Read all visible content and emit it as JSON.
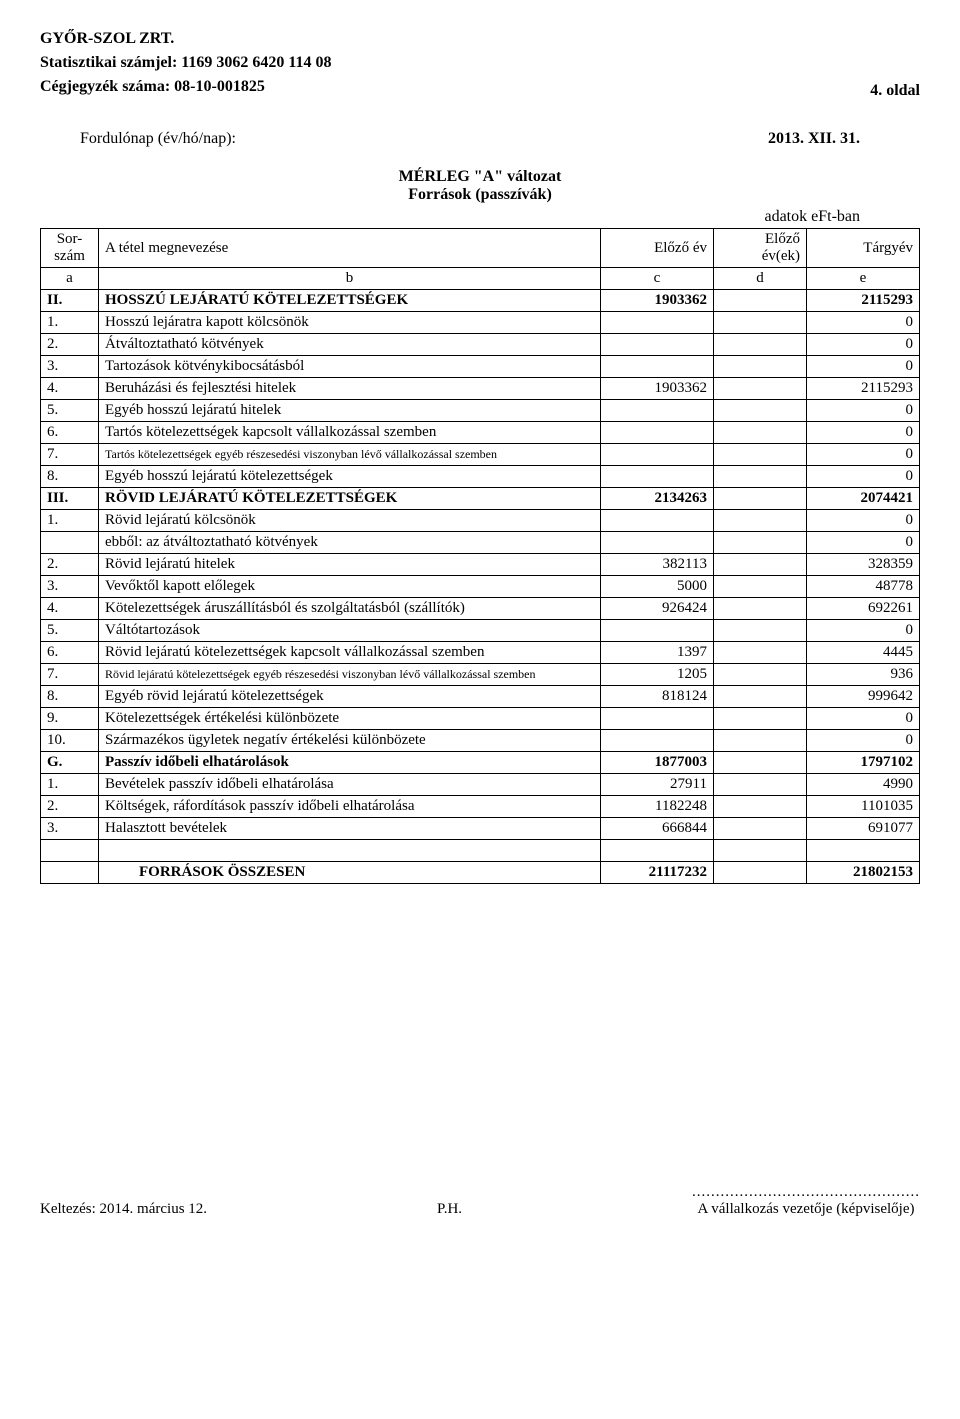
{
  "header": {
    "company": "GYŐR-SZOL ZRT.",
    "stat_label": "Statisztikai számjel: 1169 3062 6420 114 08",
    "reg_label": "Cégjegyzék száma: 08-10-001825",
    "page_no": "4. oldal",
    "date_label": "Fordulónap (év/hó/nap):",
    "date_value": "2013. XII. 31.",
    "title1": "MÉRLEG \"A\" változat",
    "title2": "Források (passzívák)",
    "unit": "adatok eFt-ban"
  },
  "columns": {
    "sor": "Sor-\nszám",
    "sor1": "Sor-",
    "sor2": "szám",
    "megnev": "A tétel megnevezése",
    "elozo_ev": "Előző év",
    "elozo_evek1": "Előző",
    "elozo_evek2": "év(ek)",
    "targyev": "Tárgyév",
    "a": "a",
    "b": "b",
    "c": "c",
    "d": "d",
    "e": "e"
  },
  "rows": [
    {
      "a": "II.",
      "b": "HOSSZÚ LEJÁRATÚ KÖTELEZETTSÉGEK",
      "c": "1903362",
      "d": "",
      "e": "2115293",
      "bold": true
    },
    {
      "a": "1.",
      "b": "Hosszú lejáratra kapott kölcsönök",
      "c": "",
      "d": "",
      "e": "0"
    },
    {
      "a": "2.",
      "b": "Átváltoztatható kötvények",
      "c": "",
      "d": "",
      "e": "0"
    },
    {
      "a": "3.",
      "b": "Tartozások kötvénykibocsátásból",
      "c": "",
      "d": "",
      "e": "0"
    },
    {
      "a": "4.",
      "b": "Beruházási és fejlesztési hitelek",
      "c": "1903362",
      "d": "",
      "e": "2115293"
    },
    {
      "a": "5.",
      "b": "Egyéb hosszú lejáratú hitelek",
      "c": "",
      "d": "",
      "e": "0"
    },
    {
      "a": "6.",
      "b": "Tartós kötelezettségek kapcsolt vállalkozással szemben",
      "c": "",
      "d": "",
      "e": "0"
    },
    {
      "a": "7.",
      "b": "Tartós kötelezettségek egyéb részesedési viszonyban lévő vállalkozással szemben",
      "c": "",
      "d": "",
      "e": "0",
      "small": true
    },
    {
      "a": "8.",
      "b": "Egyéb hosszú lejáratú kötelezettségek",
      "c": "",
      "d": "",
      "e": "0"
    },
    {
      "a": "III.",
      "b": "RÖVID LEJÁRATÚ KÖTELEZETTSÉGEK",
      "c": "2134263",
      "d": "",
      "e": "2074421",
      "bold": true
    },
    {
      "a": "1.",
      "b": "Rövid lejáratú kölcsönök",
      "c": "",
      "d": "",
      "e": "0"
    },
    {
      "a": "",
      "b": "ebből: az átváltoztatható kötvények",
      "c": "",
      "d": "",
      "e": "0"
    },
    {
      "a": "2.",
      "b": "Rövid lejáratú hitelek",
      "c": "382113",
      "d": "",
      "e": "328359"
    },
    {
      "a": "3.",
      "b": "Vevőktől kapott előlegek",
      "c": "5000",
      "d": "",
      "e": "48778"
    },
    {
      "a": "4.",
      "b": "Kötelezettségek áruszállításból és szolgáltatásból (szállítók)",
      "c": "926424",
      "d": "",
      "e": "692261"
    },
    {
      "a": "5.",
      "b": "Váltótartozások",
      "c": "",
      "d": "",
      "e": "0"
    },
    {
      "a": "6.",
      "b": "Rövid lejáratú kötelezettségek kapcsolt vállalkozással szemben",
      "c": "1397",
      "d": "",
      "e": "4445"
    },
    {
      "a": "7.",
      "b": "Rövid lejáratú kötelezettségek egyéb részesedési viszonyban lévő vállalkozással szemben",
      "c": "1205",
      "d": "",
      "e": "936",
      "small": true
    },
    {
      "a": "8.",
      "b": "Egyéb rövid lejáratú kötelezettségek",
      "c": "818124",
      "d": "",
      "e": "999642"
    },
    {
      "a": "9.",
      "b": "Kötelezettségek értékelési különbözete",
      "c": "",
      "d": "",
      "e": "0"
    },
    {
      "a": "10.",
      "b": "Származékos ügyletek negatív értékelési különbözete",
      "c": "",
      "d": "",
      "e": "0"
    },
    {
      "a": "G.",
      "b": "Passzív időbeli elhatárolások",
      "c": "1877003",
      "d": "",
      "e": "1797102",
      "bold": true
    },
    {
      "a": "1.",
      "b": "Bevételek passzív időbeli elhatárolása",
      "c": "27911",
      "d": "",
      "e": "4990"
    },
    {
      "a": "2.",
      "b": "Költségek, ráfordítások passzív időbeli elhatárolása",
      "c": "1182248",
      "d": "",
      "e": "1101035"
    },
    {
      "a": "3.",
      "b": "Halasztott bevételek",
      "c": "666844",
      "d": "",
      "e": "691077"
    }
  ],
  "sum": {
    "label": "FORRÁSOK ÖSSZESEN",
    "c": "21117232",
    "e": "21802153"
  },
  "footer": {
    "date": "Keltezés: 2014. március 12.",
    "ph": "P.H.",
    "dots": "................................................",
    "sig": "A vállalkozás vezetője (képviselője)"
  }
}
